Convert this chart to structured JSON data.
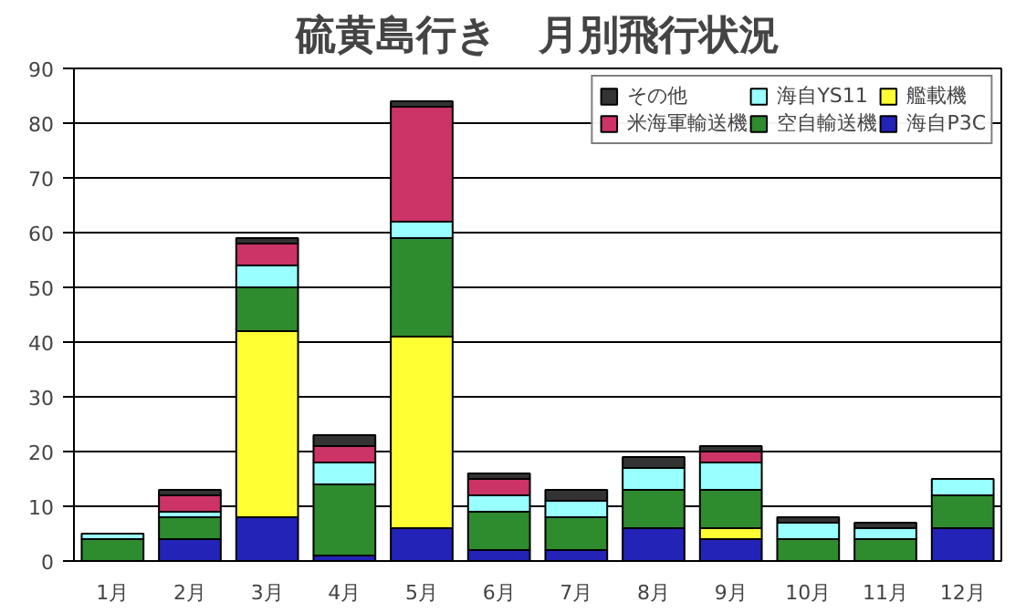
{
  "chart_data": {
    "type": "bar",
    "title": "硫黄島行き　月別飛行状況",
    "stacked": true,
    "categories": [
      "1月",
      "2月",
      "3月",
      "4月",
      "5月",
      "6月",
      "7月",
      "8月",
      "9月",
      "10月",
      "11月",
      "12月"
    ],
    "series": [
      {
        "name": "海自P3C",
        "color": "#2323b8",
        "values": [
          0,
          4,
          8,
          1,
          6,
          2,
          2,
          6,
          4,
          0,
          0,
          6
        ]
      },
      {
        "name": "艦載機",
        "color": "#ffff33",
        "values": [
          0,
          0,
          34,
          0,
          35,
          0,
          0,
          0,
          2,
          0,
          0,
          0
        ]
      },
      {
        "name": "空自輸送機",
        "color": "#2e8b2e",
        "values": [
          4,
          4,
          8,
          13,
          18,
          7,
          6,
          7,
          7,
          4,
          4,
          6
        ]
      },
      {
        "name": "海自YS11",
        "color": "#99ffff",
        "values": [
          1,
          1,
          4,
          4,
          3,
          3,
          3,
          4,
          5,
          3,
          2,
          3
        ]
      },
      {
        "name": "米海軍輸送機",
        "color": "#cc3366",
        "values": [
          0,
          3,
          4,
          3,
          21,
          3,
          0,
          0,
          2,
          0,
          0,
          0
        ]
      },
      {
        "name": "その他",
        "color": "#333333",
        "values": [
          0,
          1,
          1,
          2,
          1,
          1,
          2,
          2,
          1,
          1,
          1,
          0
        ]
      }
    ],
    "ylim": [
      0,
      90
    ],
    "yticks": [
      0,
      10,
      20,
      30,
      40,
      50,
      60,
      70,
      80,
      90
    ],
    "grid": "y",
    "legend": "top right"
  }
}
